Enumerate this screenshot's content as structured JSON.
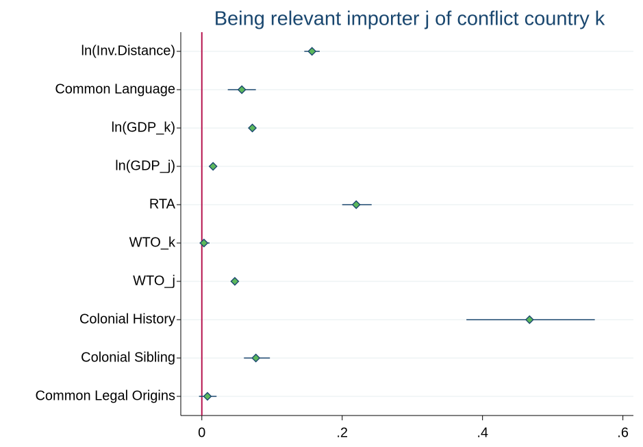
{
  "chart_data": {
    "type": "coefplot",
    "title": "Being relevant importer j of conflict country k",
    "categories": [
      "ln(Inv.Distance)",
      "Common Language",
      "ln(GDP_k)",
      "ln(GDP_j)",
      "RTA",
      "WTO_k",
      "WTO_j",
      "Colonial History",
      "Colonial Sibling",
      "Common Legal Origins"
    ],
    "values": [
      0.157,
      0.057,
      0.072,
      0.016,
      0.22,
      0.003,
      0.047,
      0.467,
      0.077,
      0.008
    ],
    "ci_low": [
      0.146,
      0.037,
      0.069,
      0.013,
      0.2,
      -0.003,
      0.043,
      0.377,
      0.06,
      -0.004
    ],
    "ci_high": [
      0.168,
      0.077,
      0.075,
      0.019,
      0.242,
      0.011,
      0.051,
      0.56,
      0.097,
      0.021
    ],
    "color": "#5cb85c",
    "xlim": [
      -0.03,
      0.615
    ],
    "xticks": [
      0,
      {
        "value": 0.2,
        "label": ".2"
      },
      {
        "value": 0.4,
        "label": ".4"
      },
      {
        "value": 0.6,
        "label": ".6"
      }
    ],
    "xline": 0,
    "grid": true
  }
}
